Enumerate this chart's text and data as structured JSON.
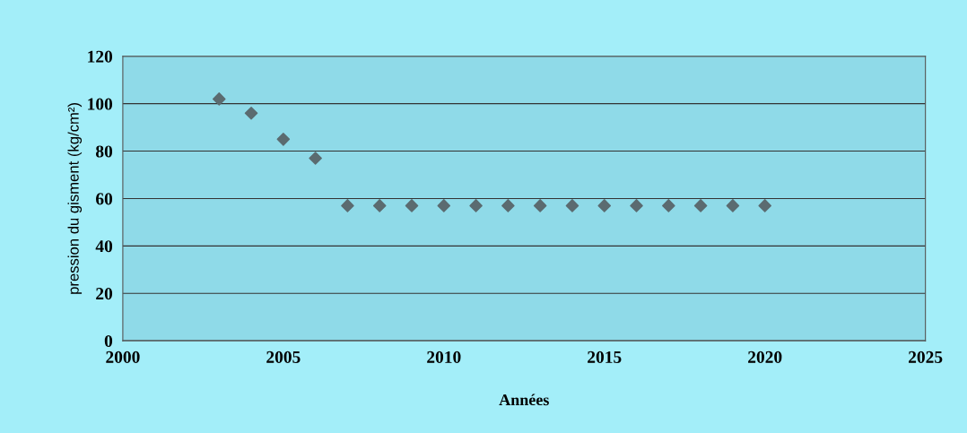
{
  "chart_data": {
    "type": "scatter",
    "xlabel": "Années",
    "ylabel": "pression du gisment (kg/cm²)",
    "x": [
      2003,
      2004,
      2005,
      2006,
      2007,
      2008,
      2009,
      2010,
      2011,
      2012,
      2013,
      2014,
      2015,
      2016,
      2017,
      2018,
      2019,
      2020
    ],
    "series": [
      {
        "color": "#5b6b70",
        "values": [
          102,
          96,
          85,
          77,
          57,
          57,
          57,
          57,
          57,
          57,
          57,
          57,
          57,
          57,
          57,
          57,
          57,
          57
        ]
      }
    ],
    "xlim": [
      2000,
      2025
    ],
    "xticks": [
      2000,
      2005,
      2010,
      2015,
      2020,
      2025
    ],
    "ylim": [
      0,
      120
    ],
    "yticks": [
      0,
      20,
      40,
      60,
      80,
      100,
      120
    ],
    "grid": "y",
    "marker": "diamond",
    "legend": false
  }
}
